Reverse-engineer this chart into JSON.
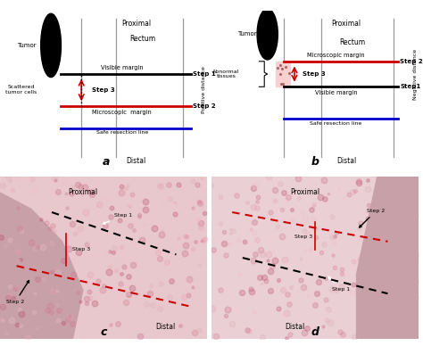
{
  "title": "",
  "bg_color": "#ffffff",
  "panel_a": {
    "proximal_label": "Proximal",
    "distal_label": "Distal",
    "tumor_label": "Tumor",
    "rectum_label": "Rectum",
    "scattered_label": "Scattered\ntumor cells",
    "visible_margin_label": "Visible margin",
    "microscopic_margin_label": "Microscopic  margin",
    "safe_resection_label": "Safe resection line",
    "step1_label": "Step 1",
    "step2_label": "Step 2",
    "step3_label": "Step 3",
    "positive_distance_label": "Positive distance",
    "panel_label": "a"
  },
  "panel_b": {
    "proximal_label": "Proximal",
    "distal_label": "Distal",
    "tumor_label": "Tumor",
    "rectum_label": "Rectum",
    "abnormal_label": "Abnormal\ntissues",
    "visible_margin_label": "Visible margin",
    "microscopic_margin_label": "Microscopic margin",
    "safe_resection_label": "Safe resection line",
    "step1_label": "Step1",
    "step2_label": "Step 2",
    "step3_label": "Step 3",
    "negative_distance_label": "Negative distance",
    "panel_label": "b"
  },
  "colors": {
    "black": "#000000",
    "red": "#cc0000",
    "blue": "#0000cc",
    "gray": "#888888",
    "light_pink": "#f5c0c0",
    "white": "#ffffff"
  }
}
